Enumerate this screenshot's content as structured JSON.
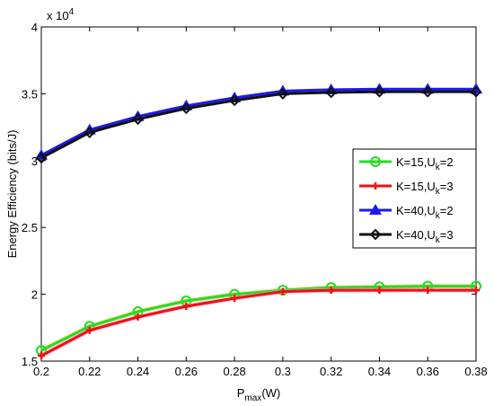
{
  "chart_data": {
    "type": "line",
    "xlabel_main": "P",
    "xlabel_sub": "max",
    "xlabel_unit": "(W)",
    "ylabel": "Energy  Efficiency (bits/J)",
    "exponent_base": "x 10",
    "exponent_power": "4",
    "xlim": [
      0.2,
      0.38
    ],
    "ylim": [
      1.5,
      4
    ],
    "xticks": [
      "0.2",
      "0.22",
      "0.24",
      "0.26",
      "0.28",
      "0.3",
      "0.32",
      "0.34",
      "0.36",
      "0.38"
    ],
    "yticks": [
      "1.5",
      "2",
      "2.5",
      "3",
      "3.5",
      "4"
    ],
    "x": [
      0.2,
      0.22,
      0.24,
      0.26,
      0.28,
      0.3,
      0.32,
      0.34,
      0.36,
      0.38
    ],
    "legend_position": "right",
    "series": [
      {
        "name_main": "K=15,U",
        "name_sub": "k",
        "name_tail": "=2",
        "color": "#22dd22",
        "marker": "circle",
        "values": [
          1.58,
          1.76,
          1.87,
          1.95,
          2.0,
          2.03,
          2.05,
          2.055,
          2.06,
          2.06
        ]
      },
      {
        "name_main": "K=15,U",
        "name_sub": "k",
        "name_tail": "=3",
        "color": "#ee1111",
        "marker": "plus",
        "values": [
          1.54,
          1.73,
          1.83,
          1.91,
          1.97,
          2.02,
          2.03,
          2.03,
          2.03,
          2.03
        ]
      },
      {
        "name_main": "K=40,U",
        "name_sub": "k",
        "name_tail": "=2",
        "color": "#1a1aee",
        "marker": "triangle",
        "values": [
          3.04,
          3.23,
          3.33,
          3.41,
          3.47,
          3.52,
          3.53,
          3.535,
          3.535,
          3.535
        ]
      },
      {
        "name_main": "K=40,U",
        "name_sub": "k",
        "name_tail": "=3",
        "color": "#111111",
        "marker": "diamond",
        "values": [
          3.02,
          3.21,
          3.31,
          3.39,
          3.45,
          3.5,
          3.51,
          3.515,
          3.515,
          3.515
        ]
      }
    ]
  }
}
